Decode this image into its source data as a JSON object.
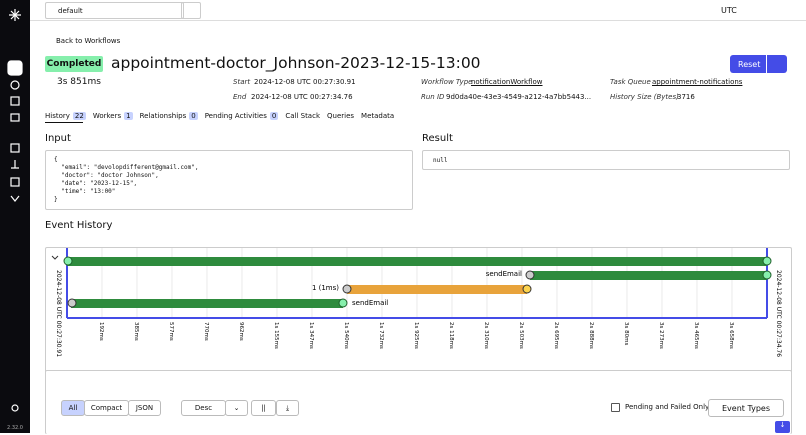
{
  "topbar": {
    "namespace": "default",
    "timezone": "UTC"
  },
  "sidebar": {
    "version": "2.32.0"
  },
  "header": {
    "back": "Back to Workflows",
    "status": "Completed",
    "title": "appointment-doctor_Johnson-2023-12-15-13:00",
    "duration": "3s 851ms",
    "reset": "Reset"
  },
  "details": {
    "start_label": "Start",
    "start": "2024-12-08 UTC 00:27:30.91",
    "end_label": "End",
    "end": "2024-12-08 UTC 00:27:34.76",
    "type_label": "Workflow Type",
    "type": "notificationWorkflow",
    "run_label": "Run ID",
    "run": "9d0da40e-43e3-4549-a212-4a7bb5443...",
    "queue_label": "Task Queue",
    "queue": "appointment-notifications",
    "size_label": "History Size (Bytes)",
    "size": "3716"
  },
  "tabs": [
    {
      "label": "History",
      "count": "22"
    },
    {
      "label": "Workers",
      "count": "1"
    },
    {
      "label": "Relationships",
      "count": "0"
    },
    {
      "label": "Pending Activities",
      "count": "0"
    },
    {
      "label": "Call Stack"
    },
    {
      "label": "Queries"
    },
    {
      "label": "Metadata"
    }
  ],
  "input": {
    "title": "Input",
    "lines": [
      "{",
      "  \"email\": \"devolopdifferent@gmail.com\",",
      "  \"doctor\": \"doctor Johnson\",",
      "  \"date\": \"2023-12-15\",",
      "  \"time\": \"13:00\"",
      "}"
    ]
  },
  "result": {
    "title": "Result",
    "value": "null"
  },
  "history": {
    "title": "Event History",
    "start": "2024-12-08 UTC 00:27:30.91",
    "end": "2024-12-08 UTC 00:27:34.76",
    "labels": {
      "send1": "sendEmail",
      "retry": "1 (1ms)",
      "send2": "sendEmail"
    },
    "ticks": [
      "192ms",
      "385ms",
      "577ms",
      "770ms",
      "962ms",
      "1s 155ms",
      "1s 347ms",
      "1s 540ms",
      "1s 732ms",
      "1s 925ms",
      "2s 118ms",
      "2s 310ms",
      "2s 503ms",
      "2s 695ms",
      "2s 888ms",
      "3s 80ms",
      "3s 273ms",
      "3s 465ms",
      "3s 658ms"
    ]
  },
  "controls": {
    "all": "All",
    "compact": "Compact",
    "json": "JSON",
    "order": "Desc",
    "pending": "Pending and Failed Only",
    "types": "Event Types"
  }
}
